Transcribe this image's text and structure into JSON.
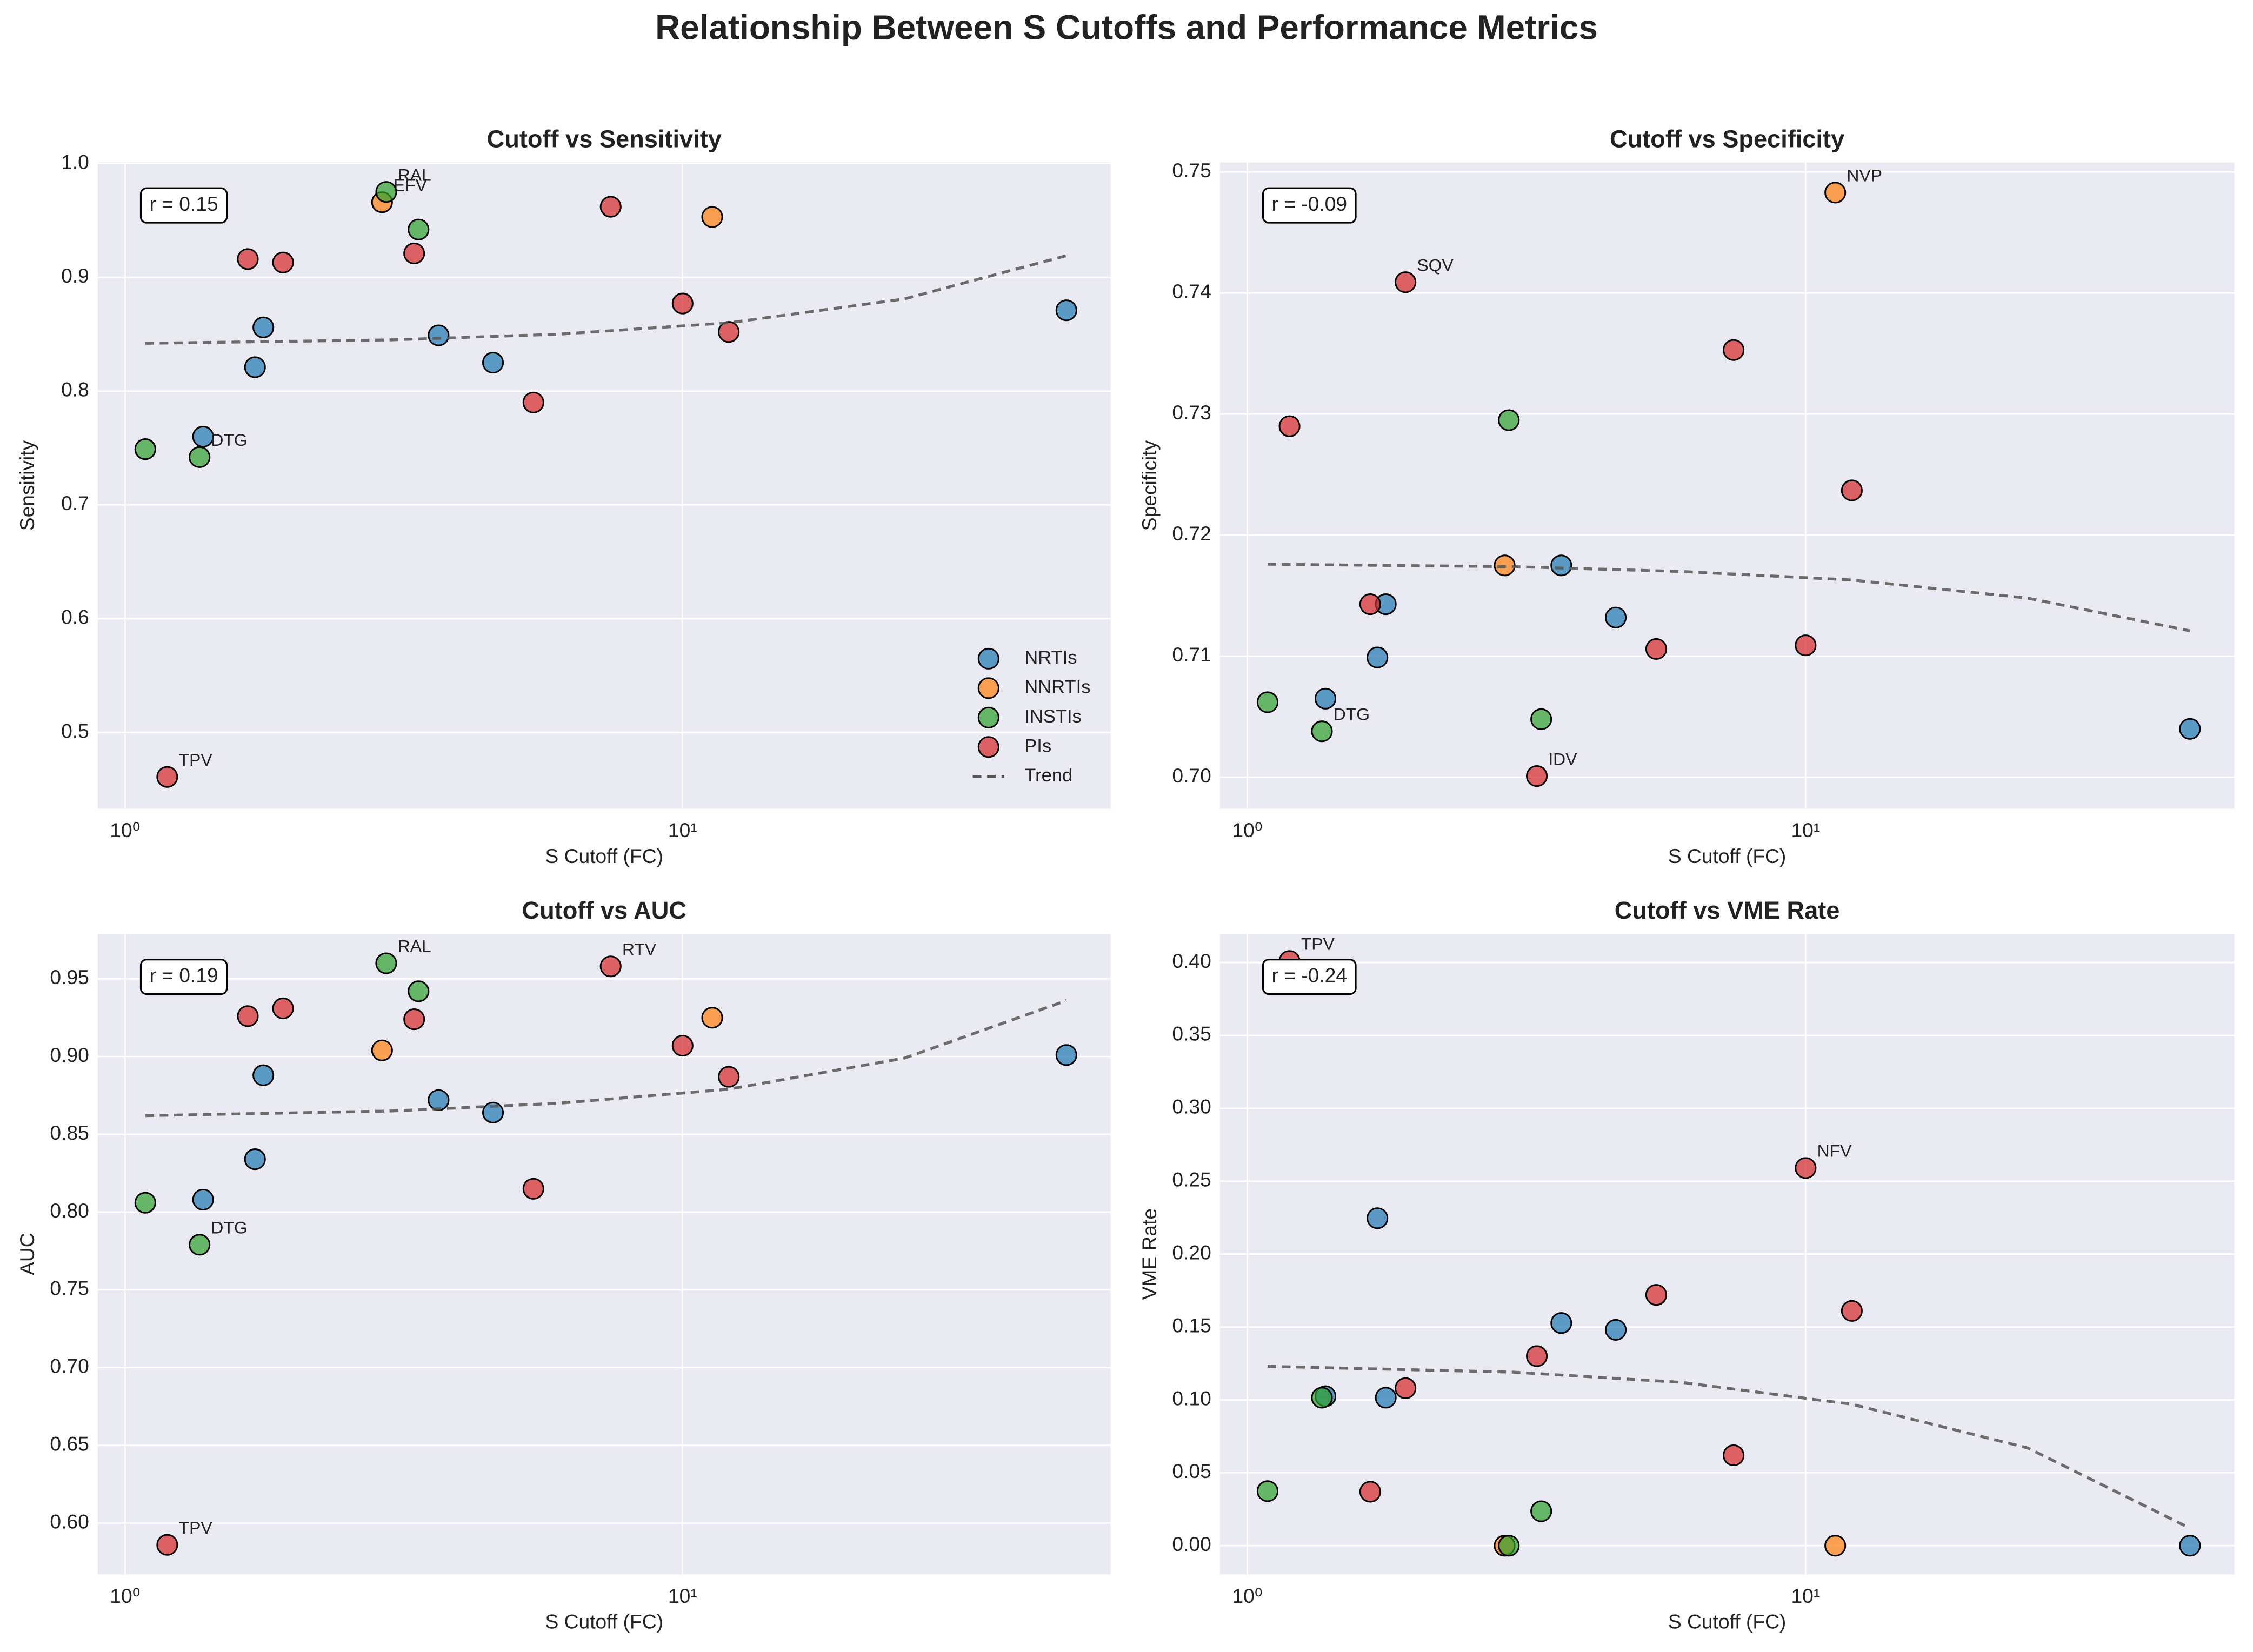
{
  "title": "Relationship Between S Cutoffs and Performance Metrics",
  "chart_data": [
    {
      "type": "scatter",
      "title": "Cutoff vs Sensitivity",
      "xlabel": "S Cutoff (FC)",
      "ylabel": "Sensitivity",
      "annotation": "r = 0.15",
      "xscale": "log",
      "xlim": [
        0.893,
        58.6
      ],
      "xticks": [
        {
          "value": 1,
          "label": "10⁰"
        },
        {
          "value": 10,
          "label": "10¹"
        }
      ],
      "ylim": [
        0.433,
        1.001
      ],
      "yticks": [
        0.5,
        0.6,
        0.7,
        0.8,
        0.9,
        {
          "value": 1,
          "label": "1.0"
        }
      ],
      "grid": true,
      "legend": "lower right",
      "series": [
        {
          "name": "NRTIs",
          "color": "#1f77b4",
          "x": [
            1.38,
            1.71,
            1.77,
            3.65,
            4.57,
            48.8
          ],
          "values": [
            0.76,
            0.821,
            0.856,
            0.849,
            0.825,
            0.871
          ],
          "labels": [
            null,
            null,
            null,
            null,
            null,
            null
          ]
        },
        {
          "name": "NNRTIs",
          "color": "#ff7f0e",
          "x": [
            2.89,
            11.3
          ],
          "values": [
            0.966,
            0.953
          ],
          "labels": [
            "EFV",
            null
          ]
        },
        {
          "name": "INSTIs",
          "color": "#2ca02c",
          "x": [
            1.087,
            1.36,
            2.94,
            3.36
          ],
          "values": [
            0.749,
            0.742,
            0.975,
            0.942
          ],
          "labels": [
            null,
            "DTG",
            "RAL",
            null
          ]
        },
        {
          "name": "PIs",
          "color": "#d62728",
          "x": [
            1.19,
            1.66,
            1.92,
            3.3,
            5.4,
            7.43,
            10.0,
            12.1
          ],
          "values": [
            0.461,
            0.916,
            0.913,
            0.921,
            0.79,
            0.962,
            0.877,
            0.852
          ],
          "labels": [
            "TPV",
            null,
            null,
            null,
            null,
            null,
            null,
            null
          ]
        },
        {
          "name": "Trend",
          "color": "#555555",
          "style": "dashed",
          "x": [
            1.087,
            3,
            6,
            12.1,
            25,
            48.8
          ],
          "values": [
            0.842,
            0.845,
            0.85,
            0.86,
            0.881,
            0.919
          ]
        }
      ]
    },
    {
      "type": "scatter",
      "title": "Cutoff vs Specificity",
      "xlabel": "S Cutoff (FC)",
      "ylabel": "Specificity",
      "annotation": "r = -0.09",
      "xscale": "log",
      "xlim": [
        0.893,
        58.6
      ],
      "xticks": [
        {
          "value": 1,
          "label": "10⁰"
        },
        {
          "value": 10,
          "label": "10¹"
        }
      ],
      "ylim": [
        0.6974,
        0.7508
      ],
      "yticks": [
        {
          "value": 0.7,
          "label": "0.70"
        },
        0.71,
        0.72,
        0.73,
        0.74,
        0.75
      ],
      "grid": true,
      "series": [
        {
          "color": "#1f77b4",
          "x": [
            1.38,
            1.71,
            1.77,
            3.65,
            4.57,
            48.8
          ],
          "values": [
            0.7065,
            0.7099,
            0.7143,
            0.7175,
            0.7132,
            0.704
          ],
          "labels": [
            null,
            null,
            null,
            null,
            null,
            null
          ]
        },
        {
          "color": "#ff7f0e",
          "x": [
            2.89,
            11.3
          ],
          "values": [
            0.7175,
            0.7483
          ],
          "labels": [
            null,
            "NVP"
          ]
        },
        {
          "color": "#2ca02c",
          "x": [
            1.087,
            1.36,
            2.94,
            3.36
          ],
          "values": [
            0.7062,
            0.7038,
            0.7295,
            0.7048
          ],
          "labels": [
            null,
            "DTG",
            null,
            null
          ]
        },
        {
          "color": "#d62728",
          "x": [
            1.19,
            1.66,
            1.92,
            3.3,
            5.4,
            7.43,
            10.0,
            12.1
          ],
          "values": [
            0.729,
            0.7143,
            0.7409,
            0.7001,
            0.7106,
            0.7353,
            0.7109,
            0.7237
          ],
          "labels": [
            null,
            null,
            "SQV",
            "IDV",
            null,
            null,
            null,
            null
          ]
        },
        {
          "color": "#555555",
          "style": "dashed",
          "x": [
            1.087,
            3,
            6,
            12.1,
            25,
            48.8
          ],
          "values": [
            0.7176,
            0.7174,
            0.717,
            0.7163,
            0.7148,
            0.7121
          ]
        }
      ]
    },
    {
      "type": "scatter",
      "title": "Cutoff vs AUC",
      "xlabel": "S Cutoff (FC)",
      "ylabel": "AUC",
      "annotation": "r = 0.19",
      "xscale": "log",
      "xlim": [
        0.893,
        58.6
      ],
      "xticks": [
        {
          "value": 1,
          "label": "10⁰"
        },
        {
          "value": 10,
          "label": "10¹"
        }
      ],
      "ylim": [
        0.567,
        0.979
      ],
      "yticks": [
        {
          "value": 0.6,
          "label": "0.60"
        },
        0.65,
        {
          "value": 0.7,
          "label": "0.70"
        },
        0.75,
        {
          "value": 0.8,
          "label": "0.80"
        },
        0.85,
        {
          "value": 0.9,
          "label": "0.90"
        },
        0.95
      ],
      "grid": true,
      "series": [
        {
          "color": "#1f77b4",
          "x": [
            1.38,
            1.71,
            1.77,
            3.65,
            4.57,
            48.8
          ],
          "values": [
            0.808,
            0.834,
            0.888,
            0.872,
            0.864,
            0.901
          ],
          "labels": [
            null,
            null,
            null,
            null,
            null,
            null
          ]
        },
        {
          "color": "#ff7f0e",
          "x": [
            2.89,
            11.3
          ],
          "values": [
            0.904,
            0.925
          ],
          "labels": [
            null,
            null
          ]
        },
        {
          "color": "#2ca02c",
          "x": [
            1.087,
            1.36,
            2.94,
            3.36
          ],
          "values": [
            0.806,
            0.779,
            0.96,
            0.942
          ],
          "labels": [
            null,
            "DTG",
            "RAL",
            null
          ]
        },
        {
          "color": "#d62728",
          "x": [
            1.19,
            1.66,
            1.92,
            3.3,
            5.4,
            7.43,
            10.0,
            12.1
          ],
          "values": [
            0.586,
            0.926,
            0.931,
            0.924,
            0.815,
            0.958,
            0.907,
            0.887
          ],
          "labels": [
            "TPV",
            null,
            null,
            null,
            null,
            "RTV",
            null,
            null
          ]
        },
        {
          "color": "#555555",
          "style": "dashed",
          "x": [
            1.087,
            3,
            6,
            12.1,
            25,
            48.8
          ],
          "values": [
            0.862,
            0.865,
            0.87,
            0.879,
            0.899,
            0.936
          ]
        }
      ]
    },
    {
      "type": "scatter",
      "title": "Cutoff vs VME Rate",
      "xlabel": "S Cutoff (FC)",
      "ylabel": "VME Rate",
      "annotation": "r = -0.24",
      "xscale": "log",
      "xlim": [
        0.893,
        58.6
      ],
      "xticks": [
        {
          "value": 1,
          "label": "10⁰"
        },
        {
          "value": 10,
          "label": "10¹"
        }
      ],
      "ylim": [
        -0.0197,
        0.4197
      ],
      "yticks": [
        {
          "value": 0,
          "label": "0.00"
        },
        0.05,
        {
          "value": 0.1,
          "label": "0.10"
        },
        0.15,
        {
          "value": 0.2,
          "label": "0.20"
        },
        0.25,
        {
          "value": 0.3,
          "label": "0.30"
        },
        0.35,
        {
          "value": 0.4,
          "label": "0.40"
        }
      ],
      "grid": true,
      "series": [
        {
          "color": "#1f77b4",
          "x": [
            1.38,
            1.71,
            1.77,
            3.65,
            4.57,
            48.8
          ],
          "values": [
            0.1025,
            0.2246,
            0.1015,
            0.1527,
            0.148,
            0
          ],
          "labels": [
            null,
            null,
            null,
            null,
            null,
            null
          ]
        },
        {
          "color": "#ff7f0e",
          "x": [
            2.89,
            11.3
          ],
          "values": [
            0,
            0
          ],
          "labels": [
            null,
            null
          ]
        },
        {
          "color": "#2ca02c",
          "x": [
            1.087,
            1.36,
            2.94,
            3.36
          ],
          "values": [
            0.0374,
            0.1015,
            0,
            0.0236
          ],
          "labels": [
            null,
            null,
            null,
            null
          ]
        },
        {
          "color": "#d62728",
          "x": [
            1.19,
            1.66,
            1.92,
            3.3,
            5.4,
            7.43,
            10.0,
            12.1
          ],
          "values": [
            0.401,
            0.037,
            0.108,
            0.13,
            0.172,
            0.062,
            0.259,
            0.161
          ],
          "labels": [
            "TPV",
            null,
            null,
            null,
            null,
            null,
            "NFV",
            null
          ]
        },
        {
          "color": "#555555",
          "style": "dashed",
          "x": [
            1.087,
            3,
            6,
            12.1,
            25,
            48.8
          ],
          "values": [
            0.123,
            0.119,
            0.112,
            0.097,
            0.067,
            0.012
          ]
        }
      ]
    }
  ]
}
